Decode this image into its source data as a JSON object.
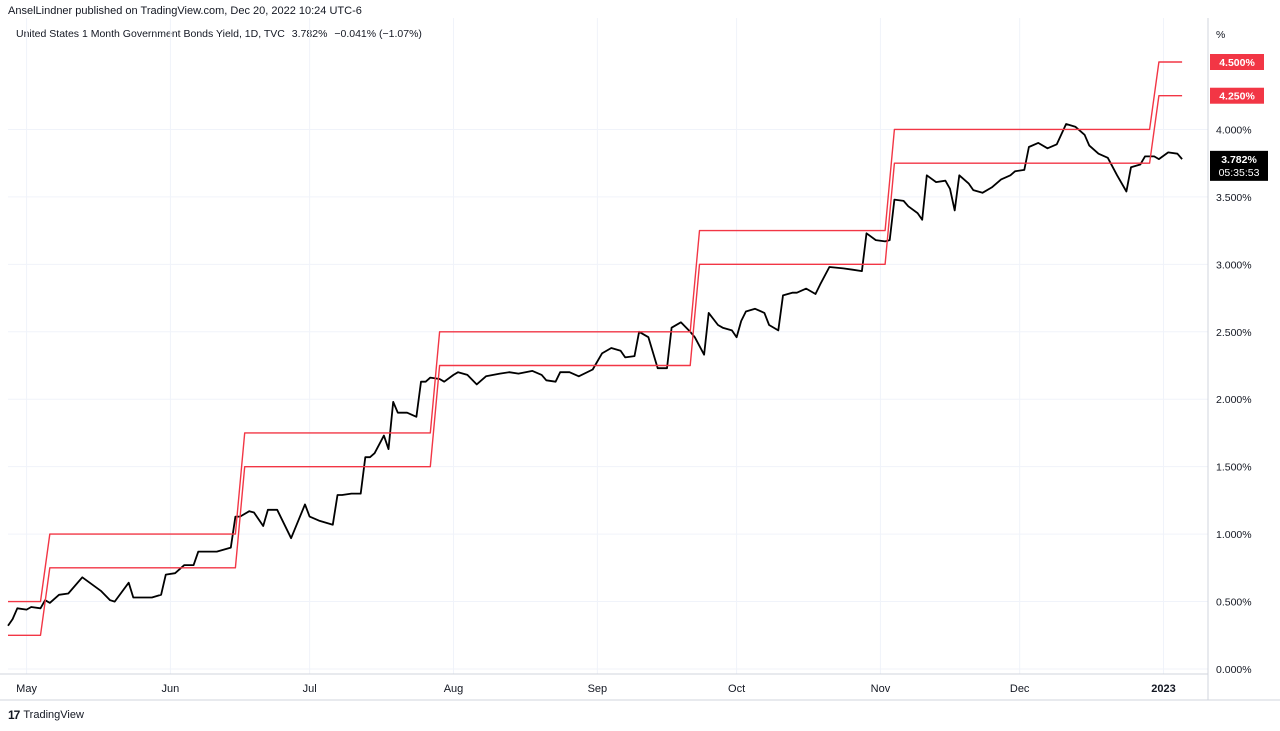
{
  "header": {
    "published": "AnselLindner published on TradingView.com, Dec 20, 2022 10:24 UTC-6",
    "symbol": "United States 1 Month Government Bonds Yield, 1D, TVC",
    "last": "3.782%",
    "change": "−0.041% (−1.07%)"
  },
  "footer": {
    "logo": "17",
    "brand": "TradingView"
  },
  "chart_data": {
    "type": "line",
    "y_unit": "%",
    "ylim": [
      0.0,
      4.5
    ],
    "y_ticks": [
      {
        "v": 0.0,
        "label": "0.000%"
      },
      {
        "v": 0.5,
        "label": "0.500%"
      },
      {
        "v": 1.0,
        "label": "1.000%"
      },
      {
        "v": 1.5,
        "label": "1.500%"
      },
      {
        "v": 2.0,
        "label": "2.000%"
      },
      {
        "v": 2.5,
        "label": "2.500%"
      },
      {
        "v": 3.0,
        "label": "3.000%"
      },
      {
        "v": 3.5,
        "label": "3.500%"
      },
      {
        "v": 4.0,
        "label": "4.000%"
      }
    ],
    "x_ticks": [
      {
        "date": "2022-05-01",
        "label": "May"
      },
      {
        "date": "2022-06-01",
        "label": "Jun"
      },
      {
        "date": "2022-07-01",
        "label": "Jul"
      },
      {
        "date": "2022-08-01",
        "label": "Aug"
      },
      {
        "date": "2022-09-01",
        "label": "Sep"
      },
      {
        "date": "2022-10-01",
        "label": "Oct"
      },
      {
        "date": "2022-11-01",
        "label": "Nov"
      },
      {
        "date": "2022-12-01",
        "label": "Dec"
      },
      {
        "date": "2023-01-01",
        "label": "2023"
      }
    ],
    "x_range": [
      "2022-04-27",
      "2023-01-08"
    ],
    "price_label": {
      "value": 3.782,
      "text": "3.782%",
      "countdown": "05:35:53",
      "color": "#000000"
    },
    "band_labels": [
      {
        "value": 4.5,
        "text": "4.500%",
        "color": "#f23645"
      },
      {
        "value": 4.25,
        "text": "4.250%",
        "color": "#f23645"
      }
    ],
    "series": [
      {
        "color": "#000000",
        "points": [
          [
            "2022-04-27",
            0.32
          ],
          [
            "2022-04-28",
            0.37
          ],
          [
            "2022-04-29",
            0.45
          ],
          [
            "2022-05-01",
            0.44
          ],
          [
            "2022-05-02",
            0.46
          ],
          [
            "2022-05-04",
            0.45
          ],
          [
            "2022-05-05",
            0.51
          ],
          [
            "2022-05-06",
            0.49
          ],
          [
            "2022-05-08",
            0.55
          ],
          [
            "2022-05-10",
            0.56
          ],
          [
            "2022-05-13",
            0.68
          ],
          [
            "2022-05-17",
            0.58
          ],
          [
            "2022-05-19",
            0.51
          ],
          [
            "2022-05-20",
            0.5
          ],
          [
            "2022-05-23",
            0.64
          ],
          [
            "2022-05-24",
            0.53
          ],
          [
            "2022-05-26",
            0.53
          ],
          [
            "2022-05-28",
            0.53
          ],
          [
            "2022-05-30",
            0.55
          ],
          [
            "2022-05-31",
            0.7
          ],
          [
            "2022-06-02",
            0.71
          ],
          [
            "2022-06-04",
            0.77
          ],
          [
            "2022-06-06",
            0.77
          ],
          [
            "2022-06-07",
            0.87
          ],
          [
            "2022-06-09",
            0.87
          ],
          [
            "2022-06-11",
            0.87
          ],
          [
            "2022-06-14",
            0.9
          ],
          [
            "2022-06-15",
            1.13
          ],
          [
            "2022-06-16",
            1.13
          ],
          [
            "2022-06-18",
            1.17
          ],
          [
            "2022-06-19",
            1.16
          ],
          [
            "2022-06-21",
            1.06
          ],
          [
            "2022-06-22",
            1.18
          ],
          [
            "2022-06-24",
            1.18
          ],
          [
            "2022-06-27",
            0.97
          ],
          [
            "2022-06-30",
            1.22
          ],
          [
            "2022-07-01",
            1.13
          ],
          [
            "2022-07-03",
            1.1
          ],
          [
            "2022-07-06",
            1.07
          ],
          [
            "2022-07-07",
            1.29
          ],
          [
            "2022-07-08",
            1.29
          ],
          [
            "2022-07-10",
            1.3
          ],
          [
            "2022-07-12",
            1.3
          ],
          [
            "2022-07-13",
            1.57
          ],
          [
            "2022-07-14",
            1.57
          ],
          [
            "2022-07-15",
            1.6
          ],
          [
            "2022-07-17",
            1.73
          ],
          [
            "2022-07-18",
            1.63
          ],
          [
            "2022-07-19",
            1.98
          ],
          [
            "2022-07-20",
            1.9
          ],
          [
            "2022-07-22",
            1.9
          ],
          [
            "2022-07-24",
            1.87
          ],
          [
            "2022-07-25",
            2.13
          ],
          [
            "2022-07-26",
            2.13
          ],
          [
            "2022-07-27",
            2.16
          ],
          [
            "2022-07-29",
            2.15
          ],
          [
            "2022-07-30",
            2.13
          ],
          [
            "2022-08-01",
            2.18
          ],
          [
            "2022-08-02",
            2.2
          ],
          [
            "2022-08-04",
            2.18
          ],
          [
            "2022-08-06",
            2.11
          ],
          [
            "2022-08-08",
            2.17
          ],
          [
            "2022-08-11",
            2.19
          ],
          [
            "2022-08-13",
            2.2
          ],
          [
            "2022-08-15",
            2.19
          ],
          [
            "2022-08-18",
            2.21
          ],
          [
            "2022-08-20",
            2.18
          ],
          [
            "2022-08-21",
            2.14
          ],
          [
            "2022-08-23",
            2.13
          ],
          [
            "2022-08-24",
            2.2
          ],
          [
            "2022-08-26",
            2.2
          ],
          [
            "2022-08-28",
            2.17
          ],
          [
            "2022-08-31",
            2.22
          ],
          [
            "2022-09-02",
            2.34
          ],
          [
            "2022-09-04",
            2.38
          ],
          [
            "2022-09-06",
            2.36
          ],
          [
            "2022-09-07",
            2.31
          ],
          [
            "2022-09-09",
            2.32
          ],
          [
            "2022-09-10",
            2.5
          ],
          [
            "2022-09-12",
            2.46
          ],
          [
            "2022-09-14",
            2.23
          ],
          [
            "2022-09-16",
            2.23
          ],
          [
            "2022-09-17",
            2.53
          ],
          [
            "2022-09-19",
            2.57
          ],
          [
            "2022-09-21",
            2.5
          ],
          [
            "2022-09-22",
            2.46
          ],
          [
            "2022-09-24",
            2.33
          ],
          [
            "2022-09-25",
            2.64
          ],
          [
            "2022-09-27",
            2.55
          ],
          [
            "2022-09-28",
            2.53
          ],
          [
            "2022-09-30",
            2.51
          ],
          [
            "2022-10-01",
            2.46
          ],
          [
            "2022-10-02",
            2.58
          ],
          [
            "2022-10-03",
            2.65
          ],
          [
            "2022-10-05",
            2.67
          ],
          [
            "2022-10-07",
            2.64
          ],
          [
            "2022-10-08",
            2.55
          ],
          [
            "2022-10-10",
            2.51
          ],
          [
            "2022-10-11",
            2.77
          ],
          [
            "2022-10-13",
            2.79
          ],
          [
            "2022-10-14",
            2.79
          ],
          [
            "2022-10-16",
            2.82
          ],
          [
            "2022-10-18",
            2.78
          ],
          [
            "2022-10-19",
            2.85
          ],
          [
            "2022-10-21",
            2.98
          ],
          [
            "2022-10-24",
            2.97
          ],
          [
            "2022-10-26",
            2.96
          ],
          [
            "2022-10-28",
            2.95
          ],
          [
            "2022-10-29",
            3.23
          ],
          [
            "2022-10-31",
            3.18
          ],
          [
            "2022-11-02",
            3.17
          ],
          [
            "2022-11-03",
            3.18
          ],
          [
            "2022-11-04",
            3.48
          ],
          [
            "2022-11-06",
            3.47
          ],
          [
            "2022-11-07",
            3.43
          ],
          [
            "2022-11-09",
            3.38
          ],
          [
            "2022-11-10",
            3.33
          ],
          [
            "2022-11-11",
            3.66
          ],
          [
            "2022-11-13",
            3.61
          ],
          [
            "2022-11-15",
            3.62
          ],
          [
            "2022-11-16",
            3.56
          ],
          [
            "2022-11-17",
            3.4
          ],
          [
            "2022-11-18",
            3.66
          ],
          [
            "2022-11-20",
            3.6
          ],
          [
            "2022-11-21",
            3.55
          ],
          [
            "2022-11-23",
            3.53
          ],
          [
            "2022-11-25",
            3.57
          ],
          [
            "2022-11-27",
            3.63
          ],
          [
            "2022-11-29",
            3.66
          ],
          [
            "2022-11-30",
            3.69
          ],
          [
            "2022-12-02",
            3.7
          ],
          [
            "2022-12-03",
            3.87
          ],
          [
            "2022-12-05",
            3.9
          ],
          [
            "2022-12-07",
            3.86
          ],
          [
            "2022-12-09",
            3.89
          ],
          [
            "2022-12-11",
            4.04
          ],
          [
            "2022-12-13",
            4.02
          ],
          [
            "2022-12-15",
            3.96
          ],
          [
            "2022-12-16",
            3.88
          ],
          [
            "2022-12-18",
            3.82
          ],
          [
            "2022-12-20",
            3.79
          ],
          [
            "2022-12-22",
            3.66
          ],
          [
            "2022-12-24",
            3.54
          ],
          [
            "2022-12-25",
            3.72
          ],
          [
            "2022-12-27",
            3.74
          ],
          [
            "2022-12-28",
            3.8
          ],
          [
            "2022-12-30",
            3.8
          ],
          [
            "2022-12-31",
            3.78
          ],
          [
            "2023-01-02",
            3.83
          ],
          [
            "2023-01-04",
            3.82
          ],
          [
            "2023-01-05",
            3.78
          ]
        ]
      },
      {
        "color": "#f23645",
        "points": [
          [
            "2022-04-27",
            0.25
          ],
          [
            "2022-05-04",
            0.25
          ],
          [
            "2022-05-06",
            0.75
          ],
          [
            "2022-06-15",
            0.75
          ],
          [
            "2022-06-17",
            1.5
          ],
          [
            "2022-07-27",
            1.5
          ],
          [
            "2022-07-29",
            2.25
          ],
          [
            "2022-09-21",
            2.25
          ],
          [
            "2022-09-23",
            3.0
          ],
          [
            "2022-11-02",
            3.0
          ],
          [
            "2022-11-04",
            3.75
          ],
          [
            "2022-12-14",
            3.75
          ],
          [
            "2022-12-29",
            3.75
          ],
          [
            "2022-12-31",
            4.25
          ],
          [
            "2023-01-05",
            4.25
          ]
        ]
      },
      {
        "color": "#f23645",
        "points": [
          [
            "2022-04-27",
            0.5
          ],
          [
            "2022-05-04",
            0.5
          ],
          [
            "2022-05-06",
            1.0
          ],
          [
            "2022-06-15",
            1.0
          ],
          [
            "2022-06-17",
            1.75
          ],
          [
            "2022-07-27",
            1.75
          ],
          [
            "2022-07-29",
            2.5
          ],
          [
            "2022-09-21",
            2.5
          ],
          [
            "2022-09-23",
            3.25
          ],
          [
            "2022-11-02",
            3.25
          ],
          [
            "2022-11-04",
            4.0
          ],
          [
            "2022-12-14",
            4.0
          ],
          [
            "2022-12-29",
            4.0
          ],
          [
            "2022-12-31",
            4.5
          ],
          [
            "2023-01-05",
            4.5
          ]
        ]
      }
    ]
  }
}
